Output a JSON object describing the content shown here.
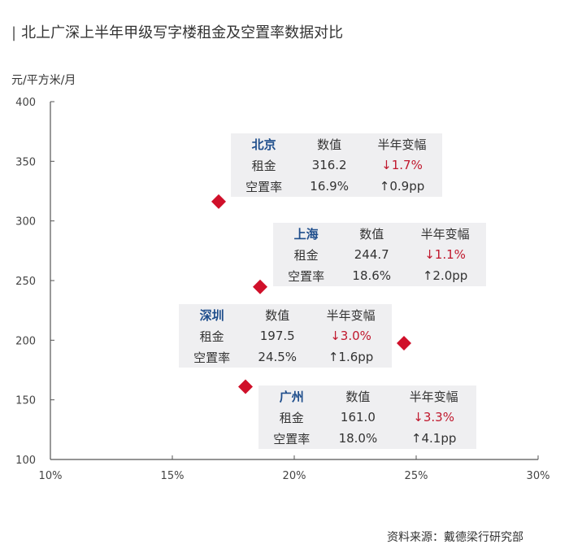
{
  "title": "北上广深上半年甲级写字楼租金及空置率数据对比",
  "source": "资料来源：戴德梁行研究部",
  "chart_data": {
    "type": "scatter",
    "title": "北上广深上半年甲级写字楼租金及空置率数据对比",
    "ylabel": "元/平方米/月",
    "xlabel": "",
    "xlim": [
      0.1,
      0.3
    ],
    "ylim": [
      100,
      400
    ],
    "xticks": [
      "10%",
      "15%",
      "20%",
      "25%",
      "30%"
    ],
    "yticks": [
      "100",
      "150",
      "200",
      "250",
      "300",
      "350",
      "400"
    ],
    "marker_color": "#d0102a",
    "points": [
      {
        "city": "北京",
        "x": 0.169,
        "y": 316.2
      },
      {
        "city": "上海",
        "x": 0.186,
        "y": 244.7
      },
      {
        "city": "深圳",
        "x": 0.245,
        "y": 197.5
      },
      {
        "city": "广州",
        "x": 0.18,
        "y": 161.0
      }
    ],
    "tables": [
      {
        "city": "北京",
        "col_value": "数值",
        "col_change": "半年变幅",
        "rent_label": "租金",
        "rent_value": "316.2",
        "rent_change": "↓1.7%",
        "vacancy_label": "空置率",
        "vacancy_value": "16.9%",
        "vacancy_change": "↑0.9pp"
      },
      {
        "city": "上海",
        "col_value": "数值",
        "col_change": "半年变幅",
        "rent_label": "租金",
        "rent_value": "244.7",
        "rent_change": "↓1.1%",
        "vacancy_label": "空置率",
        "vacancy_value": "18.6%",
        "vacancy_change": "↑2.0pp"
      },
      {
        "city": "深圳",
        "col_value": "数值",
        "col_change": "半年变幅",
        "rent_label": "租金",
        "rent_value": "197.5",
        "rent_change": "↓3.0%",
        "vacancy_label": "空置率",
        "vacancy_value": "24.5%",
        "vacancy_change": "↑1.6pp"
      },
      {
        "city": "广州",
        "col_value": "数值",
        "col_change": "半年变幅",
        "rent_label": "租金",
        "rent_value": "161.0",
        "rent_change": "↓3.3%",
        "vacancy_label": "空置率",
        "vacancy_value": "18.0%",
        "vacancy_change": "↑4.1pp"
      }
    ]
  }
}
